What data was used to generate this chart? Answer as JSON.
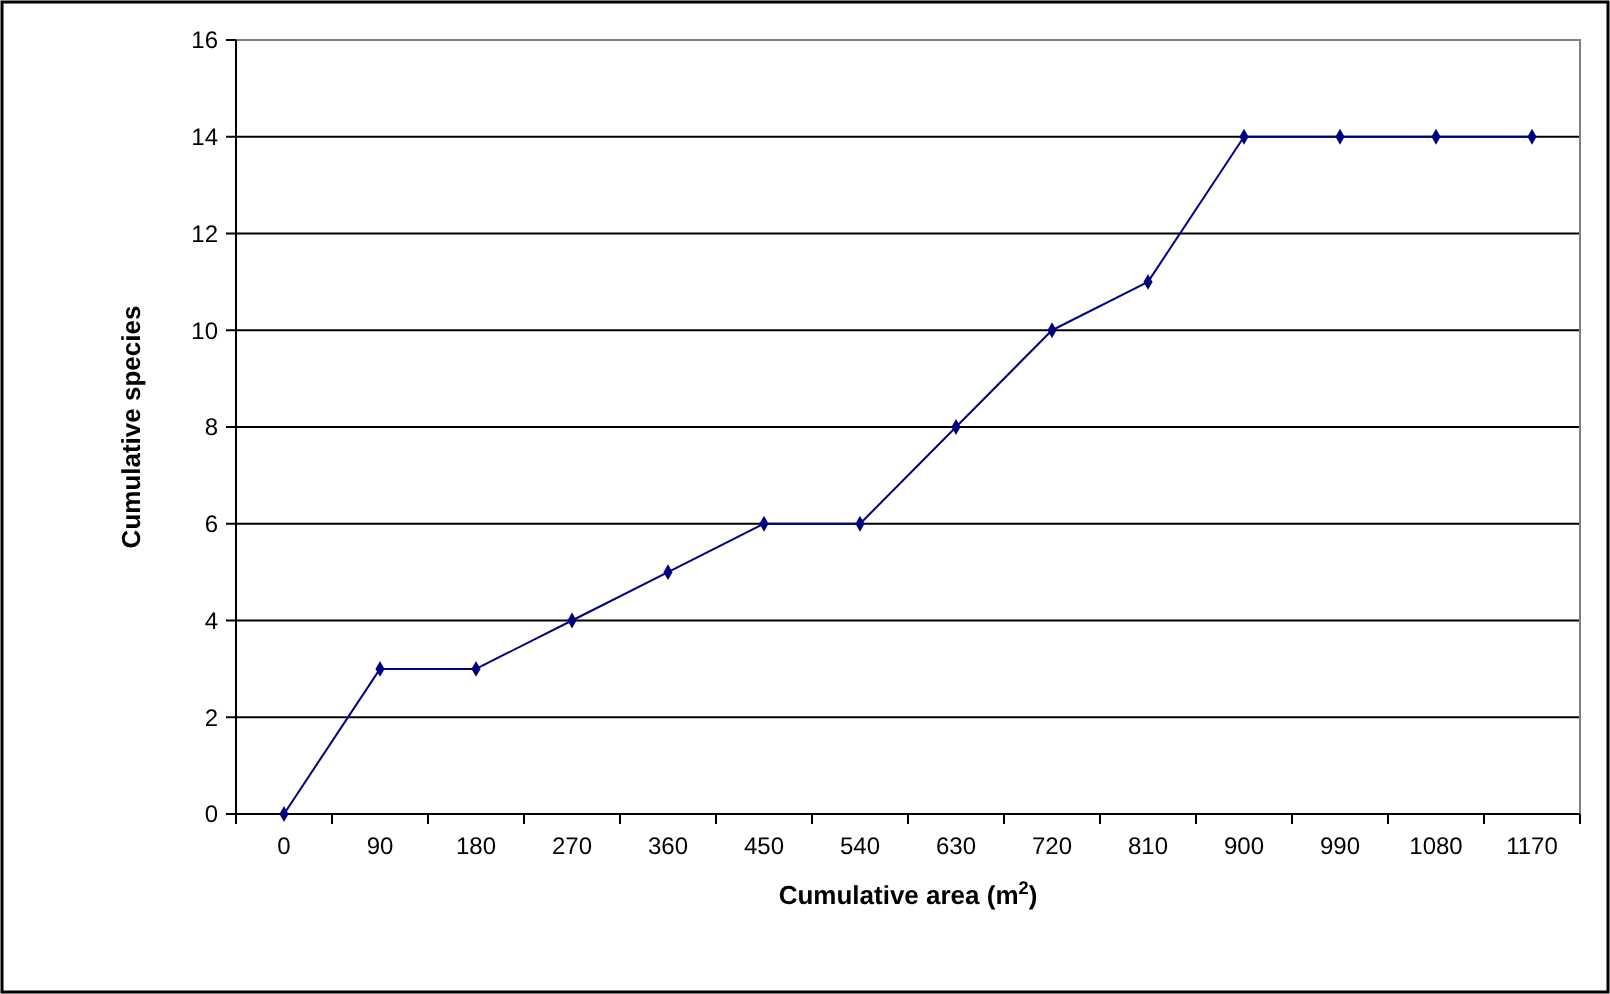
{
  "chart_data": {
    "type": "line",
    "xlabel": "Cumulative area (m$^{2}$)",
    "ylabel": "Cumulative species",
    "categories": [
      "0",
      "90",
      "180",
      "270",
      "360",
      "450",
      "540",
      "630",
      "720",
      "810",
      "900",
      "990",
      "1080",
      "1170"
    ],
    "series": [
      {
        "color": "#000080",
        "values": [
          0,
          3,
          3,
          4,
          5,
          6,
          6,
          8,
          10,
          11,
          14,
          14,
          14,
          14
        ]
      }
    ],
    "ylim": [
      0,
      16
    ],
    "yticks": [
      0,
      2,
      4,
      6,
      8,
      10,
      12,
      14,
      16
    ],
    "grid": "y",
    "marker": "diamond",
    "line_style": "solid"
  }
}
